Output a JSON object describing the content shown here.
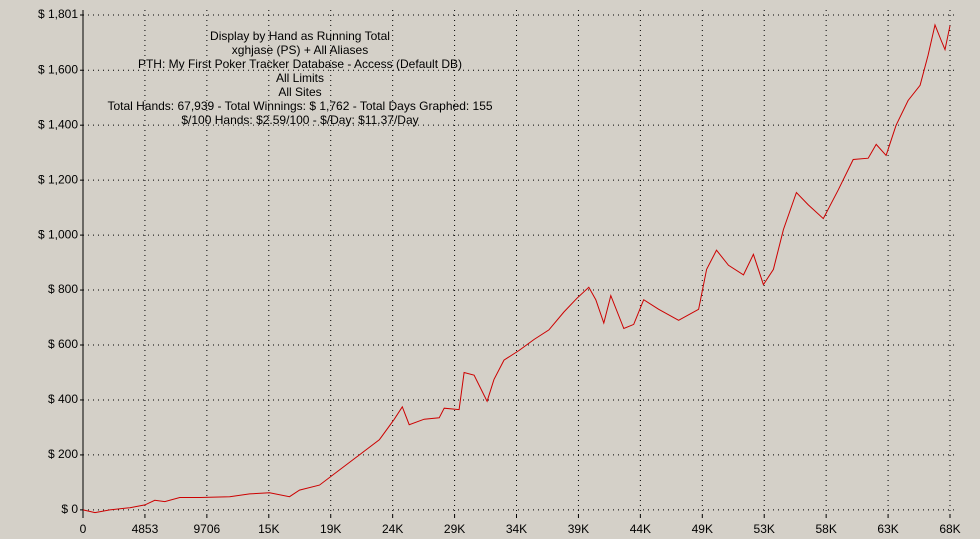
{
  "chart_data": {
    "type": "line",
    "annotations": [
      "Display by Hand as Running Total",
      "xghjase (PS) + All Aliases",
      "PTH: My First Poker Tracker Database - Access (Default DB)",
      "All Limits",
      "All Sites",
      "Total Hands: 67,939 - Total Winnings: $ 1,762 - Total Days Graphed: 155",
      "$/100 Hands: $2.59/100 - $/Day: $11.37/Day"
    ],
    "x": [
      0,
      938,
      2111,
      3675,
      4847,
      5629,
      6411,
      7583,
      9147,
      11492,
      13056,
      14620,
      16183,
      16965,
      18529,
      20092,
      21656,
      23219,
      24392,
      25018,
      25565,
      26738,
      27911,
      28302,
      29474,
      29865,
      30647,
      31663,
      32210,
      32992,
      34165,
      35337,
      36510,
      37683,
      38699,
      39637,
      40185,
      40810,
      41357,
      42374,
      43156,
      43937,
      45110,
      46674,
      48237,
      48863,
      49645,
      50583,
      51755,
      52537,
      53319,
      54101,
      54883,
      55899,
      56837,
      58010,
      59183,
      60355,
      61528,
      62153,
      62935,
      63717,
      64655,
      65593,
      66219,
      66766,
      67235,
      67548,
      67939
    ],
    "series": [
      {
        "name": "Running Total",
        "color": "#cc0000",
        "values": [
          0,
          -10,
          0,
          8,
          18,
          35,
          30,
          45,
          45,
          48,
          58,
          62,
          48,
          72,
          90,
          145,
          200,
          255,
          330,
          375,
          310,
          330,
          335,
          370,
          365,
          500,
          490,
          395,
          475,
          545,
          580,
          620,
          655,
          720,
          770,
          810,
          765,
          680,
          780,
          660,
          675,
          765,
          730,
          690,
          730,
          875,
          945,
          890,
          855,
          930,
          820,
          875,
          1020,
          1155,
          1110,
          1060,
          1165,
          1275,
          1280,
          1330,
          1290,
          1400,
          1490,
          1545,
          1655,
          1765,
          1710,
          1675,
          1762
        ]
      }
    ],
    "xlim": [
      0,
      67939
    ],
    "ylim": [
      -15,
      1801
    ],
    "xticks": [
      0,
      4853,
      9706,
      {
        "value": 14559,
        "label": "15K"
      },
      {
        "value": 19412,
        "label": "19K"
      },
      {
        "value": 24265,
        "label": "24K"
      },
      {
        "value": 29118,
        "label": "29K"
      },
      {
        "value": 33970,
        "label": "34K"
      },
      {
        "value": 38823,
        "label": "39K"
      },
      {
        "value": 43676,
        "label": "44K"
      },
      {
        "value": 48529,
        "label": "49K"
      },
      {
        "value": 53381,
        "label": "53K"
      },
      {
        "value": 58234,
        "label": "58K"
      },
      {
        "value": 63087,
        "label": "63K"
      },
      {
        "value": 67939,
        "label": "68K"
      }
    ],
    "yticks": [
      {
        "value": 0,
        "label": "$ 0"
      },
      {
        "value": 200,
        "label": "$ 200"
      },
      {
        "value": 400,
        "label": "$ 400"
      },
      {
        "value": 600,
        "label": "$ 600"
      },
      {
        "value": 800,
        "label": "$ 800"
      },
      {
        "value": 1000,
        "label": "$ 1,000"
      },
      {
        "value": 1200,
        "label": "$ 1,200"
      },
      {
        "value": 1400,
        "label": "$ 1,400"
      },
      {
        "value": 1600,
        "label": "$ 1,600"
      },
      {
        "value": 1801,
        "label": "$ 1,801"
      }
    ],
    "grid": true
  }
}
